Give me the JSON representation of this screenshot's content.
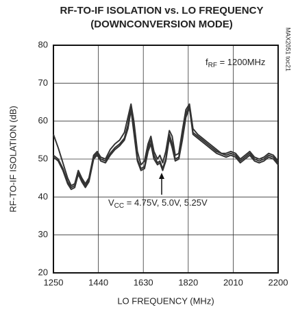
{
  "chart_data": {
    "type": "line",
    "title": "RF-TO-IF ISOLATION vs. LO FREQUENCY",
    "subtitle": "(DOWNCONVERSION MODE)",
    "x_label": "LO FREQUENCY (MHz)",
    "y_label": "RF-TO-IF ISOLATION (dB)",
    "side_label": "MAX2051 toc21",
    "annotations": [
      {
        "parts": [
          "f",
          "RF",
          " = 1200MHz"
        ]
      },
      {
        "parts": [
          "V",
          "CC",
          " = 4.75V, 5.0V, 5.25V"
        ]
      }
    ],
    "xlim": [
      1250,
      2200
    ],
    "xticks": [
      1250,
      1440,
      1630,
      1820,
      2010,
      2200
    ],
    "ylim": [
      20,
      80
    ],
    "yticks": [
      20,
      30,
      40,
      50,
      60,
      70,
      80
    ],
    "grid": true,
    "x": [
      1250,
      1270,
      1290,
      1310,
      1325,
      1340,
      1355,
      1370,
      1385,
      1400,
      1420,
      1435,
      1450,
      1470,
      1490,
      1510,
      1530,
      1550,
      1565,
      1578,
      1590,
      1605,
      1620,
      1635,
      1650,
      1662,
      1675,
      1690,
      1700,
      1712,
      1725,
      1740,
      1752,
      1765,
      1780,
      1795,
      1810,
      1825,
      1840,
      1860,
      1880,
      1900,
      1920,
      1940,
      1960,
      1980,
      2000,
      2020,
      2040,
      2060,
      2080,
      2100,
      2120,
      2140,
      2160,
      2180,
      2200
    ],
    "series": [
      {
        "color": "#333333",
        "values": [
          51,
          50,
          47.5,
          44,
          42.5,
          43,
          46.5,
          44.5,
          43,
          44.5,
          50.5,
          51.5,
          50,
          49.5,
          51.5,
          53,
          54,
          55.5,
          59,
          64,
          58,
          50,
          47.5,
          48,
          53,
          55,
          51,
          49,
          49.5,
          47.5,
          50,
          56.5,
          54,
          50,
          50.5,
          56,
          62,
          64,
          57,
          56,
          55,
          54,
          53,
          52,
          51.5,
          51,
          51.5,
          51,
          49.5,
          50.5,
          51.5,
          50,
          49.5,
          50,
          51,
          50.5,
          49
        ]
      },
      {
        "color": "#333333",
        "values": [
          56.5,
          53,
          49,
          45,
          43,
          43.5,
          47,
          45,
          43.5,
          45,
          51,
          52,
          50.5,
          50,
          52.5,
          54,
          55,
          57,
          61,
          64.5,
          60,
          52,
          48.5,
          49.5,
          54,
          56,
          52,
          50,
          51,
          49,
          52,
          57.5,
          56,
          51,
          51.5,
          57.5,
          63,
          64.5,
          58,
          56.5,
          55.5,
          54.5,
          53.5,
          52.5,
          51.5,
          51.5,
          52,
          51.5,
          50,
          51,
          52,
          50.5,
          50,
          50.5,
          51.5,
          51,
          49.5
        ]
      },
      {
        "color": "#333333",
        "values": [
          50.5,
          49.5,
          47,
          43.5,
          42,
          42.5,
          46,
          44,
          42.5,
          44,
          50,
          51,
          49.5,
          49,
          51,
          52.5,
          53.5,
          55,
          58,
          63,
          57,
          49.5,
          47,
          47.5,
          52,
          54,
          50,
          48.5,
          49,
          47,
          49.5,
          55.5,
          53,
          49.5,
          50,
          55,
          61,
          63.5,
          56.5,
          55.5,
          54.5,
          53.5,
          52.5,
          51.5,
          51,
          50.5,
          51,
          50.5,
          49,
          50,
          51,
          49.5,
          49,
          49.5,
          50.5,
          50,
          48.5
        ]
      }
    ]
  }
}
